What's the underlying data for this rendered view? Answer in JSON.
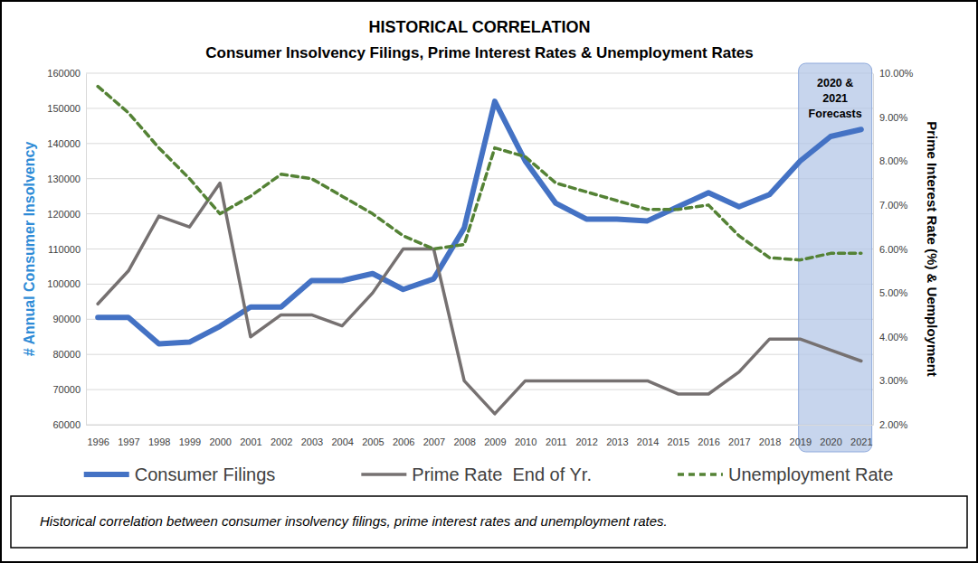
{
  "chart_data": {
    "type": "line",
    "title": "HISTORICAL CORRELATION",
    "subtitle": "Consumer Insolvency Filings, Prime Interest Rates & Unemployment Rates",
    "ylabel": "# Annual Consumer Insolvency",
    "y2label": "Prime Interest Rate (%) & Uemployment",
    "caption": "Historical correlation between consumer insolvency filings, prime interest rates and unemployment rates.",
    "categories": [
      "1996",
      "1997",
      "1998",
      "1999",
      "2000",
      "2001",
      "2002",
      "2003",
      "2004",
      "2005",
      "2006",
      "2007",
      "2008",
      "2009",
      "2010",
      "2011",
      "2012",
      "2013",
      "2014",
      "2015",
      "2016",
      "2017",
      "2018",
      "2019",
      "2020",
      "2021"
    ],
    "series": [
      {
        "name": "Consumer Filings",
        "color": "#4472c4",
        "line_style": "solid",
        "values": [
          90500,
          90500,
          83000,
          83500,
          88000,
          93500,
          93500,
          101000,
          101000,
          103000,
          98500,
          101500,
          116000,
          152000,
          135000,
          123000,
          118500,
          118500,
          118000,
          122000,
          126000,
          122000,
          125500,
          135000,
          142000,
          144000
        ]
      },
      {
        "name": "Prime Rate  End of Yr.",
        "color": "#767171",
        "line_style": "solid",
        "axis": "y2",
        "values": [
          4.75,
          5.5,
          6.75,
          6.5,
          7.5,
          4.0,
          4.5,
          4.5,
          4.25,
          5.0,
          6.0,
          6.0,
          3.0,
          2.25,
          3.0,
          3.0,
          3.0,
          3.0,
          3.0,
          2.7,
          2.7,
          3.2,
          3.95,
          3.95,
          3.7,
          3.45
        ]
      },
      {
        "name": "Unemployment Rate",
        "color": "#548235",
        "line_style": "dashed",
        "axis": "y2",
        "values": [
          9.7,
          9.1,
          8.3,
          7.6,
          6.8,
          7.2,
          7.7,
          7.6,
          7.2,
          6.8,
          6.3,
          6.0,
          6.1,
          8.3,
          8.1,
          7.5,
          7.3,
          7.1,
          6.9,
          6.9,
          7.0,
          6.3,
          5.8,
          5.75,
          5.9,
          5.9
        ]
      }
    ],
    "ylim": [
      60000,
      160000
    ],
    "yticks": [
      60000,
      70000,
      80000,
      90000,
      100000,
      110000,
      120000,
      130000,
      140000,
      150000,
      160000
    ],
    "y2lim": [
      2,
      10
    ],
    "y2ticks": [
      {
        "value": 2,
        "label": "2.00%"
      },
      {
        "value": 3,
        "label": "3.00%"
      },
      {
        "value": 4,
        "label": "4.00%"
      },
      {
        "value": 5,
        "label": "5.00%"
      },
      {
        "value": 6,
        "label": "6.00%"
      },
      {
        "value": 7,
        "label": "7.00%"
      },
      {
        "value": 8,
        "label": "8.00%"
      },
      {
        "value": 9,
        "label": "9.00%"
      },
      {
        "value": 10,
        "label": "10.00%"
      }
    ],
    "annotations": [
      {
        "text_lines": [
          "2020 &",
          "2021",
          "Forecasts"
        ],
        "x_start": "2019",
        "x_end": "2021"
      }
    ],
    "grid": true,
    "legend": "bottom"
  }
}
